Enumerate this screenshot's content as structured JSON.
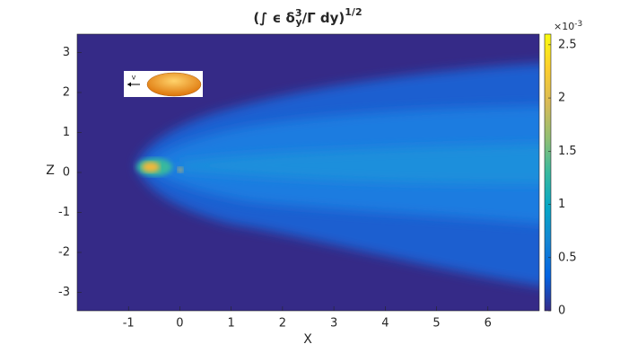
{
  "chart_data": {
    "type": "heatmap",
    "title_parts": {
      "open": "(∫ ϵ δ",
      "sup": "3",
      "sub": "y",
      "rest": "/Γ dy)",
      "power": "1/2"
    },
    "xlabel": "X",
    "ylabel": "Z",
    "xlim": [
      -2,
      7
    ],
    "xticks": [
      -1,
      0,
      1,
      2,
      3,
      4,
      5,
      6
    ],
    "ylim": [
      -3.46,
      3.46
    ],
    "yticks": [
      -3,
      -2,
      -1,
      0,
      1,
      2,
      3
    ],
    "colorbar": {
      "lim": [
        0,
        2.6
      ],
      "ticks": [
        0,
        0.5,
        1,
        1.5,
        2,
        2.5
      ],
      "multiplier": "×10",
      "multiplier_exp": "-3",
      "colors": [
        "#352a87",
        "#0363e1",
        "#1485d4",
        "#06a7c6",
        "#38b99e",
        "#92bf73",
        "#d9ba56",
        "#fcce2e",
        "#f9fb0e"
      ]
    },
    "inset_label": "v"
  }
}
